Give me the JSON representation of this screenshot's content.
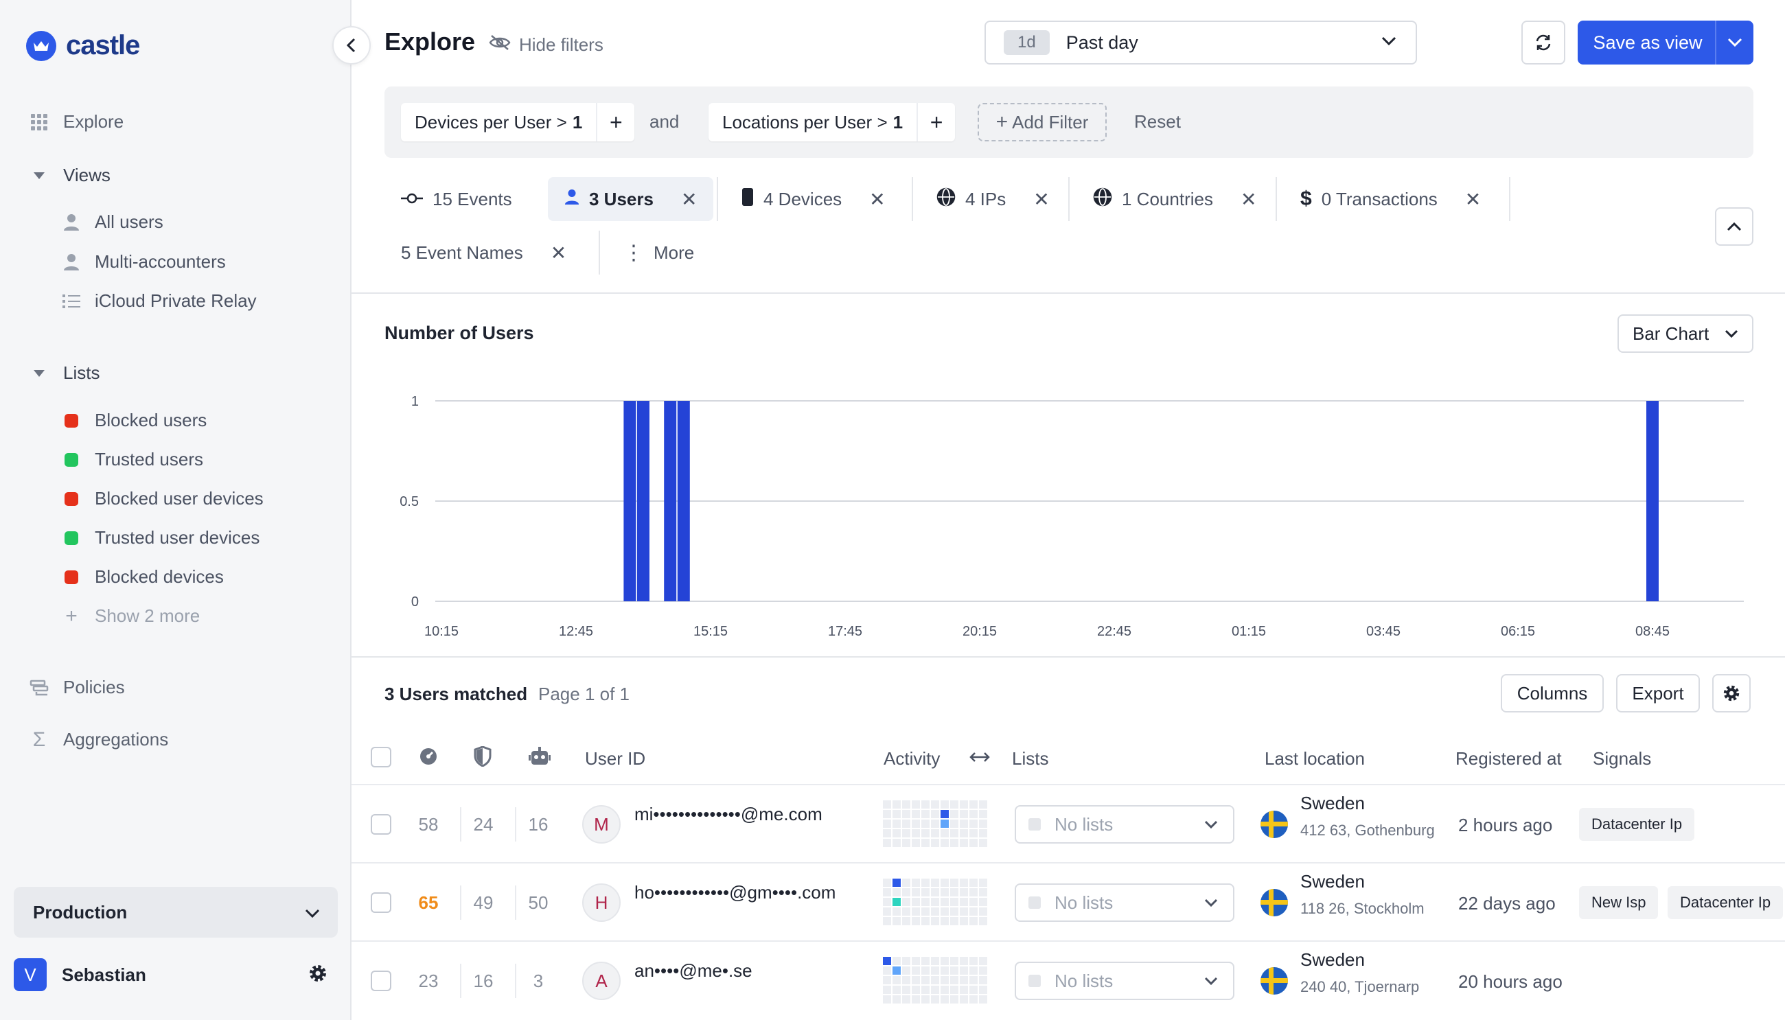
{
  "app": {
    "name": "castle"
  },
  "sidebar": {
    "nav": {
      "explore": "Explore",
      "views": "Views",
      "lists": "Lists",
      "policies": "Policies",
      "aggregations": "Aggregations"
    },
    "views": [
      "All users",
      "Multi-accounters",
      "iCloud Private Relay"
    ],
    "lists": [
      {
        "label": "Blocked users",
        "color": "#e5311b"
      },
      {
        "label": "Trusted users",
        "color": "#22c55e"
      },
      {
        "label": "Blocked user devices",
        "color": "#e5311b"
      },
      {
        "label": "Trusted user devices",
        "color": "#22c55e"
      },
      {
        "label": "Blocked devices",
        "color": "#e5311b"
      }
    ],
    "show_more": "Show 2 more",
    "environment": "Production",
    "user": {
      "initial": "V",
      "name": "Sebastian"
    }
  },
  "header": {
    "title": "Explore",
    "hide_filters": "Hide filters",
    "range_chip": "1d",
    "range_label": "Past day",
    "save_view": "Save as view"
  },
  "filters": {
    "items": [
      {
        "field": "Devices per User",
        "op": ">",
        "value": "1"
      },
      {
        "field": "Locations per User",
        "op": ">",
        "value": "1"
      }
    ],
    "joiner": "and",
    "add_filter": "Add Filter",
    "reset": "Reset"
  },
  "stat_tabs": [
    "15 Events",
    "3 Users",
    "4 Devices",
    "4 IPs",
    "1 Countries",
    "0 Transactions",
    "5 Event Names",
    "More"
  ],
  "chart_header": {
    "title": "Number of Users",
    "type_label": "Bar Chart"
  },
  "chart_data": {
    "type": "bar",
    "title": "Number of Users",
    "ylim": [
      0,
      1
    ],
    "yticks": [
      "0",
      "0.5",
      "1"
    ],
    "xticks": [
      "10:15",
      "12:45",
      "15:15",
      "17:45",
      "20:15",
      "22:45",
      "01:15",
      "03:45",
      "06:15",
      "08:45"
    ],
    "accent": "#2443d6",
    "bars": [
      {
        "x": "13:45",
        "value": 1
      },
      {
        "x": "14:00",
        "value": 1
      },
      {
        "x": "14:30",
        "value": 1
      },
      {
        "x": "14:45",
        "value": 1
      },
      {
        "x": "08:45",
        "value": 1
      }
    ]
  },
  "results": {
    "matched": "3 Users matched",
    "page": "Page 1 of 1",
    "columns_btn": "Columns",
    "export_btn": "Export"
  },
  "table": {
    "headers": {
      "user_id": "User ID",
      "activity": "Activity",
      "lists": "Lists",
      "last_location": "Last location",
      "registered_at": "Registered at",
      "signals": "Signals"
    },
    "rows": [
      {
        "scores": [
          "58",
          "24",
          "16"
        ],
        "first_score_color": "#8a909c",
        "initial": "M",
        "email": "mi••••••••••••••@me.com",
        "lists": "No lists",
        "country": "Sweden",
        "city": "412 63, Gothenburg",
        "registered": "2 hours ago",
        "signals": [
          "Datacenter Ip"
        ]
      },
      {
        "scores": [
          "65",
          "49",
          "50"
        ],
        "first_score_color": "#f08c1a",
        "initial": "H",
        "email": "ho••••••••••••@gm••••.com",
        "lists": "No lists",
        "country": "Sweden",
        "city": "118 26, Stockholm",
        "registered": "22 days ago",
        "signals": [
          "New Isp",
          "Datacenter Ip"
        ]
      },
      {
        "scores": [
          "23",
          "16",
          "3"
        ],
        "first_score_color": "#8a909c",
        "initial": "A",
        "email": "an••••@me•.se",
        "lists": "No lists",
        "country": "Sweden",
        "city": "240 40, Tjoernarp",
        "registered": "20 hours ago",
        "signals": []
      }
    ]
  }
}
